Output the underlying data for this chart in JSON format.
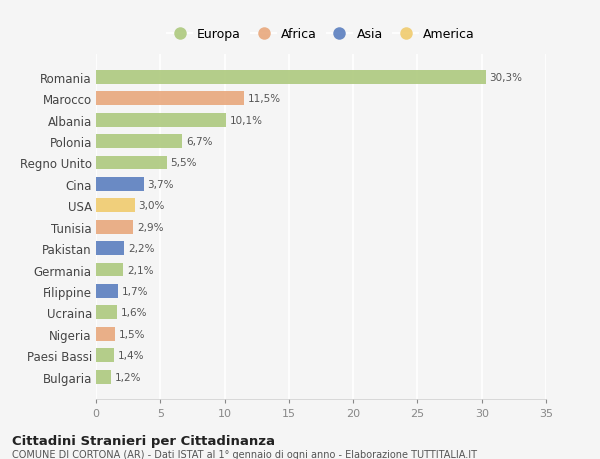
{
  "countries": [
    "Romania",
    "Marocco",
    "Albania",
    "Polonia",
    "Regno Unito",
    "Cina",
    "USA",
    "Tunisia",
    "Pakistan",
    "Germania",
    "Filippine",
    "Ucraina",
    "Nigeria",
    "Paesi Bassi",
    "Bulgaria"
  ],
  "values": [
    30.3,
    11.5,
    10.1,
    6.7,
    5.5,
    3.7,
    3.0,
    2.9,
    2.2,
    2.1,
    1.7,
    1.6,
    1.5,
    1.4,
    1.2
  ],
  "labels": [
    "30,3%",
    "11,5%",
    "10,1%",
    "6,7%",
    "5,5%",
    "3,7%",
    "3,0%",
    "2,9%",
    "2,2%",
    "2,1%",
    "1,7%",
    "1,6%",
    "1,5%",
    "1,4%",
    "1,2%"
  ],
  "continent": [
    "Europa",
    "Africa",
    "Europa",
    "Europa",
    "Europa",
    "Asia",
    "America",
    "Africa",
    "Asia",
    "Europa",
    "Asia",
    "Europa",
    "Africa",
    "Europa",
    "Europa"
  ],
  "colors": {
    "Europa": "#adc97e",
    "Africa": "#e8a87c",
    "Asia": "#5b7fbf",
    "America": "#f0cb6e"
  },
  "title": "Cittadini Stranieri per Cittadinanza",
  "subtitle": "COMUNE DI CORTONA (AR) - Dati ISTAT al 1° gennaio di ogni anno - Elaborazione TUTTITALIA.IT",
  "xlim": [
    0,
    35
  ],
  "xticks": [
    0,
    5,
    10,
    15,
    20,
    25,
    30,
    35
  ],
  "background_color": "#f5f5f5",
  "grid_color": "#ffffff"
}
